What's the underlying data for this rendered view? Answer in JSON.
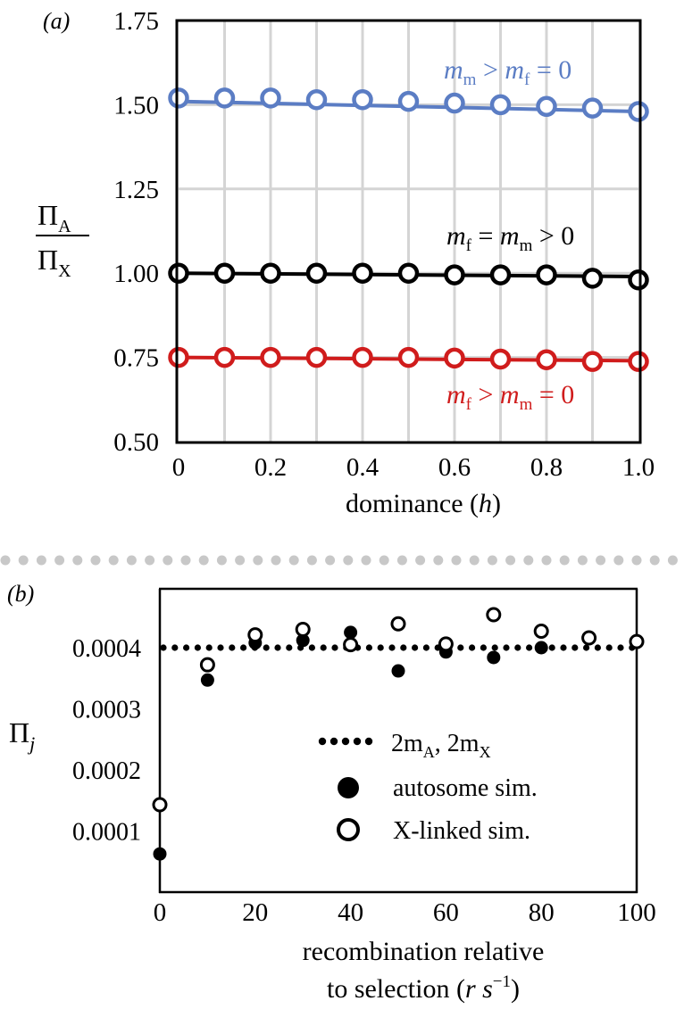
{
  "chart_data": [
    {
      "panel": "(a)",
      "type": "line",
      "ylabel": {
        "num": "Π",
        "num_sub": "A",
        "den": "Π",
        "den_sub": "X"
      },
      "xlabel": {
        "text": "dominance (",
        "var": "h",
        "close": ")"
      },
      "xlim": [
        0,
        1
      ],
      "ylim": [
        0.5,
        1.75
      ],
      "xticks": [
        "0",
        "0.2",
        "0.4",
        "0.6",
        "0.8",
        "1.0"
      ],
      "yticks": [
        "0.50",
        "0.75",
        "1.00",
        "1.25",
        "1.50",
        "1.75"
      ],
      "grid": true,
      "x": [
        0,
        0.1,
        0.2,
        0.3,
        0.4,
        0.5,
        0.6,
        0.7,
        0.8,
        0.9,
        1.0
      ],
      "series": [
        {
          "label": {
            "t1": "m",
            "s1": "m",
            "op1": " > ",
            "t2": "m",
            "s2": "f",
            "rest": " = 0"
          },
          "color": "#5b7dc4",
          "line": [
            1.51,
            1.48
          ],
          "points": [
            1.52,
            1.52,
            1.52,
            1.515,
            1.515,
            1.51,
            1.505,
            1.5,
            1.495,
            1.49,
            1.48
          ]
        },
        {
          "label": {
            "t1": "m",
            "s1": "f",
            "op1": " = ",
            "t2": "m",
            "s2": "m",
            "rest": " > 0"
          },
          "color": "#000000",
          "line": [
            1.0,
            0.99
          ],
          "points": [
            1.0,
            1.0,
            1.0,
            1.0,
            1.0,
            1.0,
            0.995,
            0.995,
            0.995,
            0.985,
            0.98
          ]
        },
        {
          "label": {
            "t1": "m",
            "s1": "f",
            "op1": " > ",
            "t2": "m",
            "s2": "m",
            "rest": " = 0"
          },
          "color": "#d01c1c",
          "line": [
            0.75,
            0.74
          ],
          "points": [
            0.75,
            0.75,
            0.75,
            0.75,
            0.75,
            0.75,
            0.748,
            0.745,
            0.743,
            0.738,
            0.738
          ]
        }
      ]
    },
    {
      "panel": "(b)",
      "type": "scatter",
      "ylabel": {
        "base": "Π",
        "sub": "j"
      },
      "xlabel": {
        "line1": "recombination relative",
        "line2_pre": "to selection (",
        "var": "r s",
        "sup": "−1",
        "close": ")"
      },
      "xlim": [
        0,
        100
      ],
      "ylim": [
        0,
        0.00048
      ],
      "xticks": [
        "0",
        "20",
        "40",
        "60",
        "80",
        "100"
      ],
      "yticks": [
        "0.0001",
        "0.0002",
        "0.0003",
        "0.0004"
      ],
      "grid": false,
      "expected_value": 0.0004,
      "series": [
        {
          "name": "autosome sim.",
          "marker": "filled",
          "x": [
            0,
            10,
            20,
            30,
            40,
            50,
            60,
            70,
            80
          ],
          "y": [
            6.25e-05,
            0.000347,
            0.000408,
            0.000412,
            0.000425,
            0.000362,
            0.000393,
            0.000384,
            0.0004
          ]
        },
        {
          "name": "X-linked sim.",
          "marker": "open",
          "x": [
            0,
            10,
            20,
            30,
            40,
            50,
            60,
            70,
            80,
            90,
            100
          ],
          "y": [
            0.000143,
            0.000372,
            0.000421,
            0.00043,
            0.000405,
            0.000439,
            0.000406,
            0.000454,
            0.000427,
            0.000416,
            0.00041
          ]
        }
      ],
      "legend": {
        "position": "center-right",
        "dotted": {
          "a": "2m",
          "a_sub": "A",
          "sep": ", ",
          "b": "2m",
          "b_sub": "X"
        },
        "filled": "autosome sim.",
        "open": "X-linked sim."
      }
    }
  ]
}
